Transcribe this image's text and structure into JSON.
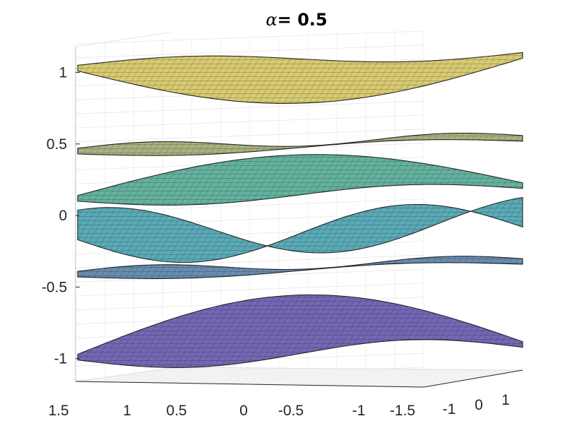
{
  "chart_data": {
    "type": "surface",
    "title": "α= 0.5",
    "title_symbol": "α",
    "title_rest": "= 0.5",
    "xlabel": "",
    "ylabel": "",
    "zlabel": "",
    "grid": true,
    "view": "3d",
    "colormap": [
      "#5b4ea8",
      "#3f86a8",
      "#3d9a8e",
      "#d2c25a"
    ],
    "x_ticks": [
      "1.5",
      "1",
      "0.5",
      "0",
      "-0.5",
      "-1",
      "-1.5"
    ],
    "y_ticks": [
      "-1",
      "0",
      "1"
    ],
    "z_ticks": [
      "1",
      "0.5",
      "0",
      "-0.5",
      "-1"
    ],
    "z_range": [
      -1.15,
      1.2
    ],
    "surfaces": [
      {
        "name": "",
        "z_mean": 1.03,
        "shape": "dip",
        "amplitude": 0.27,
        "color": "#d2c25a"
      },
      {
        "name": "",
        "z_mean": 0.45,
        "shape": "flat",
        "amplitude": 0.03,
        "color": "#9aa56a"
      },
      {
        "name": "",
        "z_mean": 0.12,
        "shape": "bump",
        "amplitude": 0.24,
        "color": "#4aa58e"
      },
      {
        "name": "",
        "z_mean": -0.15,
        "shape": "saddle",
        "amplitude": 0.18,
        "color": "#3f9cab"
      },
      {
        "name": "",
        "z_mean": -0.41,
        "shape": "flat",
        "amplitude": 0.03,
        "color": "#4d7aa3"
      },
      {
        "name": "",
        "z_mean": -0.99,
        "shape": "bump",
        "amplitude": 0.37,
        "color": "#5b4ea8"
      }
    ]
  }
}
